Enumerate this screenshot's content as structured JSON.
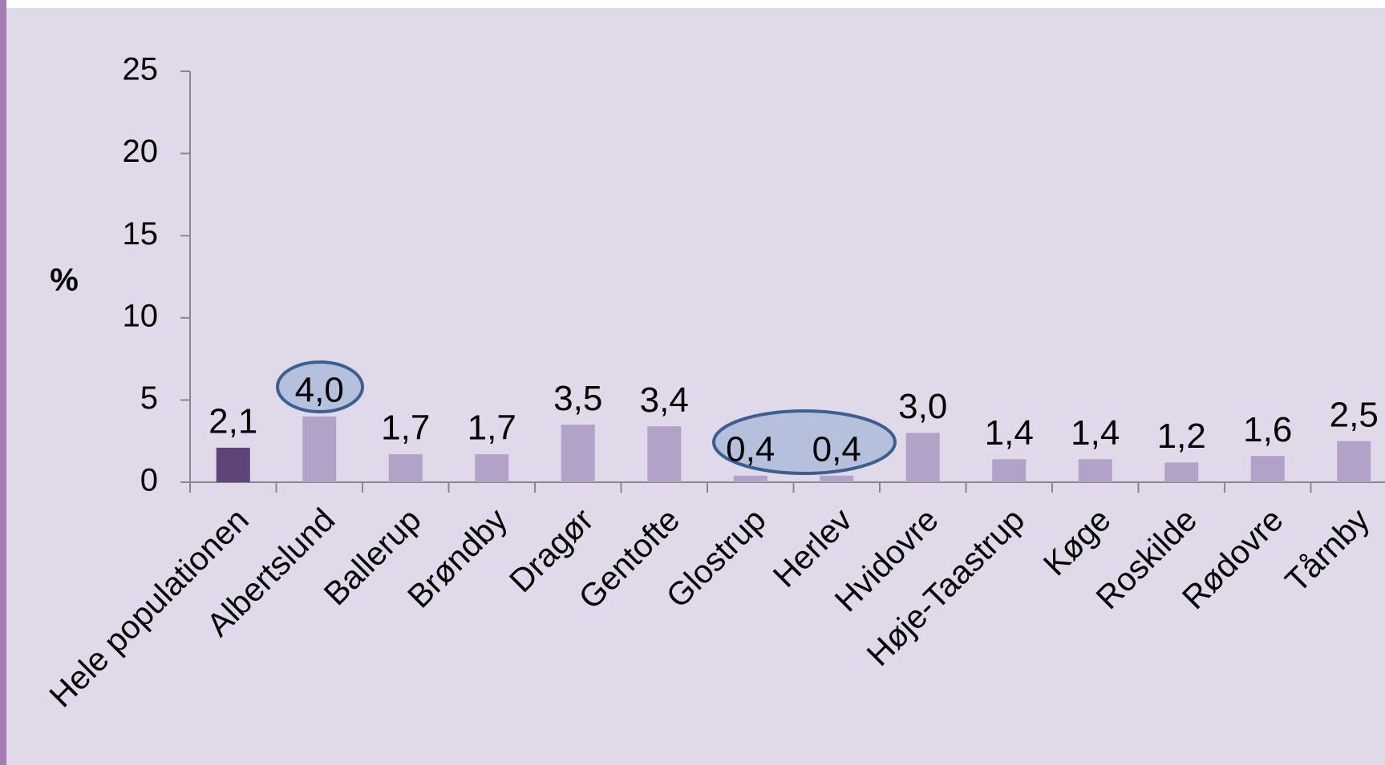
{
  "chart_data": {
    "type": "bar",
    "ylabel": "%",
    "categories": [
      "Hele populationen",
      "Albertslund",
      "Ballerup",
      "Brøndby",
      "Dragør",
      "Gentofte",
      "Glostrup",
      "Herlev",
      "Hvidovre",
      "Høje-Taastrup",
      "Køge",
      "Roskilde",
      "Rødovre",
      "Tårnby"
    ],
    "values": [
      2.1,
      4.0,
      1.7,
      1.7,
      3.5,
      3.4,
      0.4,
      0.4,
      3.0,
      1.4,
      1.4,
      1.2,
      1.6,
      2.5
    ],
    "value_labels": [
      "2,1",
      "4,0",
      "1,7",
      "1,7",
      "3,5",
      "3,4",
      "0,4",
      "0,4",
      "3,0",
      "1,4",
      "1,4",
      "1,2",
      "1,6",
      "2,5"
    ],
    "colors": [
      "#5e4479",
      "#b3a2c8",
      "#b3a2c8",
      "#b3a2c8",
      "#b3a2c8",
      "#b3a2c8",
      "#b3a2c8",
      "#b3a2c8",
      "#b3a2c8",
      "#b3a2c8",
      "#b3a2c8",
      "#b3a2c8",
      "#b3a2c8",
      "#b3a2c8"
    ],
    "ylim": [
      0,
      25
    ],
    "yticks": [
      0,
      5,
      10,
      15,
      20,
      25
    ],
    "grid": false
  }
}
